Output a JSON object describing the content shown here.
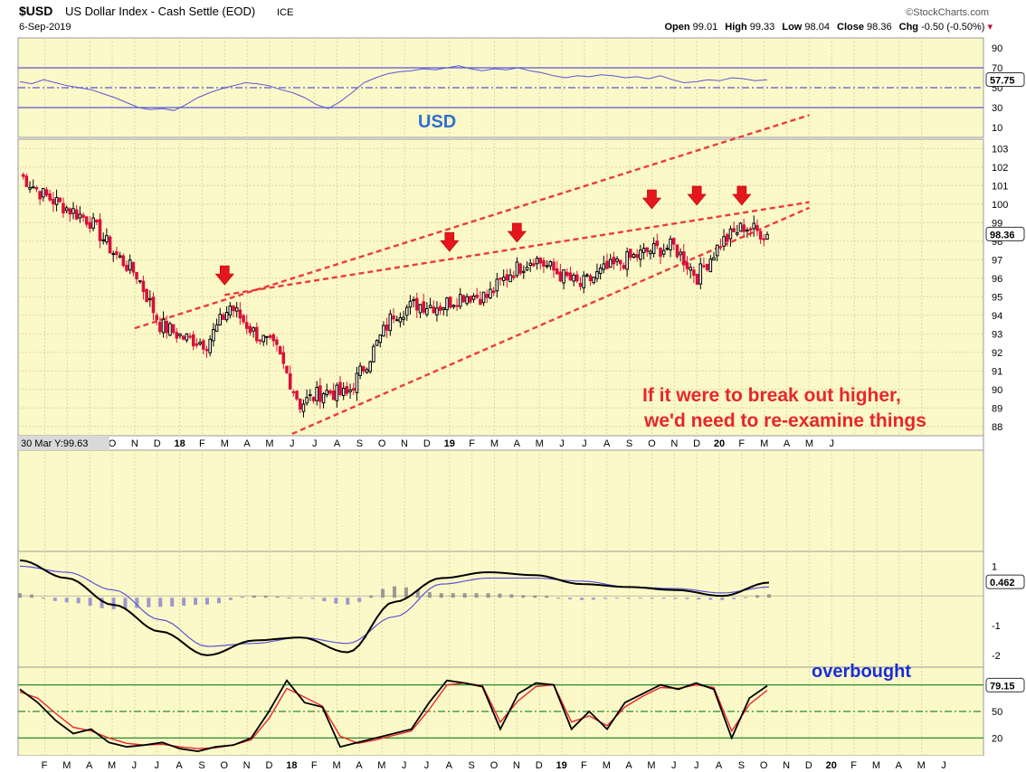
{
  "header": {
    "symbol": "$USD",
    "name": "US Dollar Index - Cash Settle (EOD)",
    "exchange": "ICE",
    "date": "6-Sep-2019",
    "watermark": "©StockCharts.com",
    "open_label": "Open",
    "open": "99.01",
    "high_label": "High",
    "high": "99.33",
    "low_label": "Low",
    "low": "98.04",
    "close_label": "Close",
    "close": "98.36",
    "chg_label": "Chg",
    "chg": "-0.50 (-0.50%)"
  },
  "colors": {
    "panel_bg": "#fcf9c8",
    "grid": "#d9d6a9",
    "up": "#000000",
    "down": "#d8103a",
    "trend": "#ee3a3a",
    "rsi": "#5a55d6",
    "macd": "#000000",
    "macd_signal": "#5a55d6",
    "hist_pos": "#8a8a8a",
    "hist_neg": "#8b87d0",
    "stoch_k": "#000000",
    "stoch_d": "#e8262a",
    "band_line": "#2a8a2a"
  },
  "month_axis_top": [
    "M",
    "J",
    "J",
    "A",
    "S",
    "O",
    "N",
    "D",
    "18",
    "F",
    "M",
    "A",
    "M",
    "J",
    "J",
    "A",
    "S",
    "O",
    "N",
    "D",
    "19",
    "F",
    "M",
    "A",
    "M",
    "J",
    "J",
    "A",
    "S",
    "O",
    "N",
    "D",
    "20",
    "F",
    "M",
    "A",
    "M",
    "J"
  ],
  "month_axis_bottom": [
    "F",
    "M",
    "A",
    "M",
    "J",
    "J",
    "A",
    "S",
    "O",
    "N",
    "D",
    "18",
    "F",
    "M",
    "A",
    "M",
    "J",
    "J",
    "A",
    "S",
    "O",
    "N",
    "D",
    "19",
    "F",
    "M",
    "A",
    "M",
    "J",
    "J",
    "A",
    "S",
    "O",
    "N",
    "D",
    "20",
    "F",
    "M",
    "A",
    "M",
    "J"
  ],
  "annotations": {
    "usd_label": "USD",
    "note_line1": "If it were to break out higher,",
    "note_line2": "we'd need to re-examine things",
    "overbought": "overbought",
    "crosshair": "30 Mar Y:99.63"
  },
  "chart_data": [
    {
      "type": "line",
      "panel": "RSI",
      "ylim": [
        0,
        100
      ],
      "yticks": [
        10,
        30,
        50,
        70,
        90
      ],
      "reference_lines": [
        30,
        50,
        70
      ],
      "last_value": "57.75",
      "series": [
        {
          "values": [
            56,
            54,
            58,
            55,
            52,
            50,
            48,
            44,
            40,
            35,
            30,
            28,
            29,
            27,
            33,
            40,
            45,
            49,
            52,
            55,
            54,
            52,
            48,
            45,
            40,
            33,
            29,
            36,
            45,
            55,
            60,
            64,
            66,
            67,
            69,
            68,
            70,
            72,
            69,
            67,
            69,
            68,
            70,
            67,
            65,
            62,
            60,
            62,
            61,
            63,
            62,
            60,
            61,
            59,
            62,
            58,
            55,
            56,
            58,
            57,
            60,
            59,
            57,
            58
          ]
        }
      ]
    },
    {
      "type": "line",
      "panel": "price",
      "ylim": [
        87.5,
        103.5
      ],
      "yticks": [
        88,
        89,
        90,
        91,
        92,
        93,
        94,
        95,
        96,
        97,
        98,
        99,
        100,
        101,
        102,
        103
      ],
      "last_value": "98.36",
      "x": [
        "2017-01",
        "2017-02",
        "2017-03",
        "2017-04",
        "2017-05",
        "2017-06",
        "2017-07",
        "2017-08",
        "2017-09",
        "2017-10",
        "2017-11",
        "2017-12",
        "2018-01",
        "2018-02",
        "2018-03",
        "2018-04",
        "2018-05",
        "2018-06",
        "2018-07",
        "2018-08",
        "2018-09",
        "2018-10",
        "2018-11",
        "2018-12",
        "2019-01",
        "2019-02",
        "2019-03",
        "2019-04",
        "2019-05",
        "2019-06",
        "2019-07",
        "2019-08",
        "2019-09"
      ],
      "series": [
        {
          "values": [
            101.6,
            100.5,
            99.8,
            99.1,
            97.4,
            96.2,
            93.5,
            92.8,
            92.5,
            94.5,
            93.1,
            92.1,
            89.2,
            89.9,
            89.7,
            91.8,
            94.1,
            94.6,
            94.5,
            95.1,
            95.0,
            96.3,
            97.1,
            96.3,
            95.6,
            96.4,
            97.0,
            97.5,
            97.7,
            96.1,
            97.9,
            98.8,
            98.36
          ]
        }
      ],
      "annotations": [
        {
          "type": "wedge_upper",
          "from": [
            "2017-06",
            93.3
          ],
          "to": [
            "2019-12",
            104.8
          ]
        },
        {
          "type": "resistance",
          "from": [
            "2017-10",
            95.1
          ],
          "to": [
            "2019-12",
            100.1
          ]
        },
        {
          "type": "support",
          "from": [
            "2018-01",
            87.6
          ],
          "to": [
            "2019-12",
            99.8
          ]
        }
      ],
      "markers": [
        {
          "x": "2017-10",
          "y": 95.3
        },
        {
          "x": "2018-08",
          "y": 97.1
        },
        {
          "x": "2018-11",
          "y": 97.6
        },
        {
          "x": "2019-05",
          "y": 99.4
        },
        {
          "x": "2019-07",
          "y": 99.6
        },
        {
          "x": "2019-09",
          "y": 99.6
        }
      ]
    },
    {
      "type": "line",
      "panel": "MACD",
      "ylim": [
        -2.4,
        1.5
      ],
      "yticks": [
        -2,
        -1,
        1
      ],
      "last_value": "0.462",
      "x": [
        "2017-01",
        "2017-03",
        "2017-05",
        "2017-07",
        "2017-09",
        "2017-11",
        "2018-01",
        "2018-03",
        "2018-05",
        "2018-07",
        "2018-09",
        "2018-11",
        "2019-01",
        "2019-03",
        "2019-05",
        "2019-07",
        "2019-09"
      ],
      "series": [
        {
          "values": [
            1.2,
            0.6,
            -0.3,
            -1.2,
            -2.0,
            -1.5,
            -1.4,
            -1.9,
            -0.2,
            0.6,
            0.8,
            0.7,
            0.4,
            0.3,
            0.2,
            0.0,
            0.45
          ]
        },
        {
          "values": [
            1.0,
            0.8,
            0.2,
            -0.8,
            -1.7,
            -1.6,
            -1.4,
            -1.6,
            -0.7,
            0.4,
            0.6,
            0.6,
            0.5,
            0.3,
            0.25,
            0.1,
            0.3
          ]
        }
      ]
    },
    {
      "type": "line",
      "panel": "Stochastic",
      "ylim": [
        0,
        100
      ],
      "yticks": [
        20,
        50,
        80
      ],
      "reference_lines": [
        20,
        50,
        80
      ],
      "last_value": "79.15",
      "series": [
        {
          "values": [
            75,
            60,
            40,
            25,
            30,
            15,
            10,
            12,
            15,
            8,
            5,
            10,
            12,
            20,
            50,
            85,
            60,
            55,
            10,
            15,
            20,
            25,
            30,
            60,
            85,
            82,
            78,
            30,
            70,
            82,
            80,
            30,
            50,
            30,
            60,
            70,
            80,
            75,
            82,
            75,
            20,
            65,
            79
          ]
        },
        {
          "values": [
            72,
            65,
            48,
            32,
            28,
            20,
            14,
            12,
            13,
            10,
            8,
            9,
            12,
            18,
            42,
            76,
            66,
            56,
            22,
            14,
            18,
            23,
            28,
            52,
            80,
            82,
            79,
            38,
            62,
            78,
            80,
            38,
            45,
            34,
            55,
            67,
            77,
            76,
            80,
            77,
            28,
            58,
            74
          ]
        }
      ]
    }
  ]
}
